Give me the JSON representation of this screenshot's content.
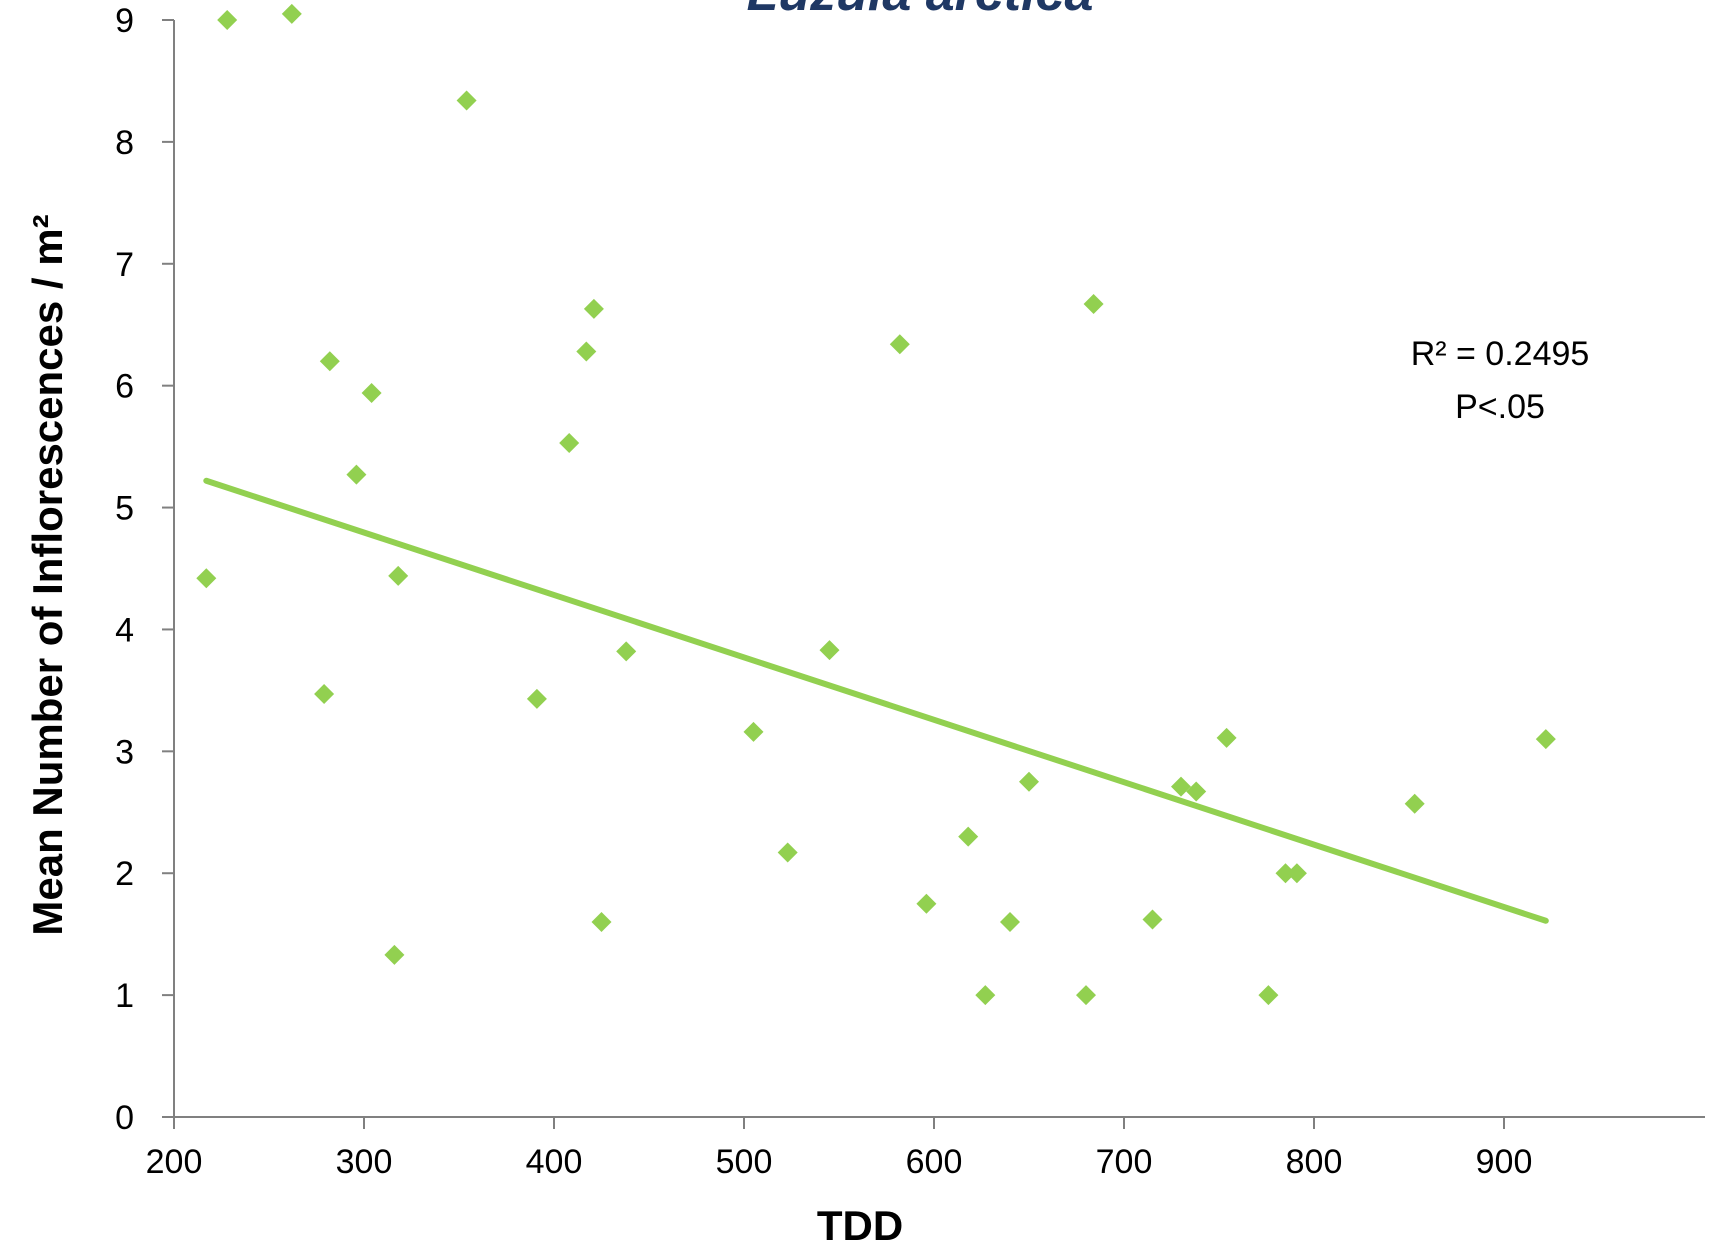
{
  "chart_data": {
    "type": "scatter",
    "title": "Luzula arctica",
    "xlabel": "TDD",
    "ylabel": "Mean Number of Inflorescences / m²",
    "xlim": [
      200,
      950
    ],
    "ylim": [
      0,
      9
    ],
    "x_ticks": [
      200,
      300,
      400,
      500,
      600,
      700,
      800,
      900
    ],
    "y_ticks": [
      0,
      1,
      2,
      3,
      4,
      5,
      6,
      7,
      8,
      9
    ],
    "grid": false,
    "legend": "none",
    "colors": {
      "marker": "#92d050",
      "trendline": "#92d050",
      "title": "#1f3864",
      "axis": "#808080"
    },
    "series": [
      {
        "marker": "diamond",
        "points": [
          [
            228,
            9.0
          ],
          [
            262,
            9.05
          ],
          [
            217,
            4.42
          ],
          [
            279,
            3.47
          ],
          [
            282,
            6.2
          ],
          [
            296,
            5.27
          ],
          [
            304,
            5.94
          ],
          [
            316,
            1.33
          ],
          [
            318,
            4.44
          ],
          [
            354,
            8.34
          ],
          [
            391,
            3.43
          ],
          [
            408,
            5.53
          ],
          [
            417,
            6.28
          ],
          [
            421,
            6.63
          ],
          [
            425,
            1.6
          ],
          [
            438,
            3.82
          ],
          [
            505,
            3.16
          ],
          [
            523,
            2.17
          ],
          [
            545,
            3.83
          ],
          [
            582,
            6.34
          ],
          [
            596,
            1.75
          ],
          [
            618,
            2.3
          ],
          [
            627,
            1.0
          ],
          [
            640,
            1.6
          ],
          [
            650,
            2.75
          ],
          [
            680,
            1.0
          ],
          [
            684,
            6.67
          ],
          [
            715,
            1.62
          ],
          [
            730,
            2.71
          ],
          [
            738,
            2.67
          ],
          [
            754,
            3.11
          ],
          [
            776,
            1.0
          ],
          [
            785,
            2.0
          ],
          [
            791,
            2.0
          ],
          [
            853,
            2.57
          ],
          [
            922,
            3.1
          ]
        ]
      }
    ],
    "trendline": {
      "x": [
        217,
        922
      ],
      "y": [
        5.22,
        1.61
      ]
    },
    "annotations": [
      "R² = 0.2495",
      "P<.05"
    ]
  }
}
